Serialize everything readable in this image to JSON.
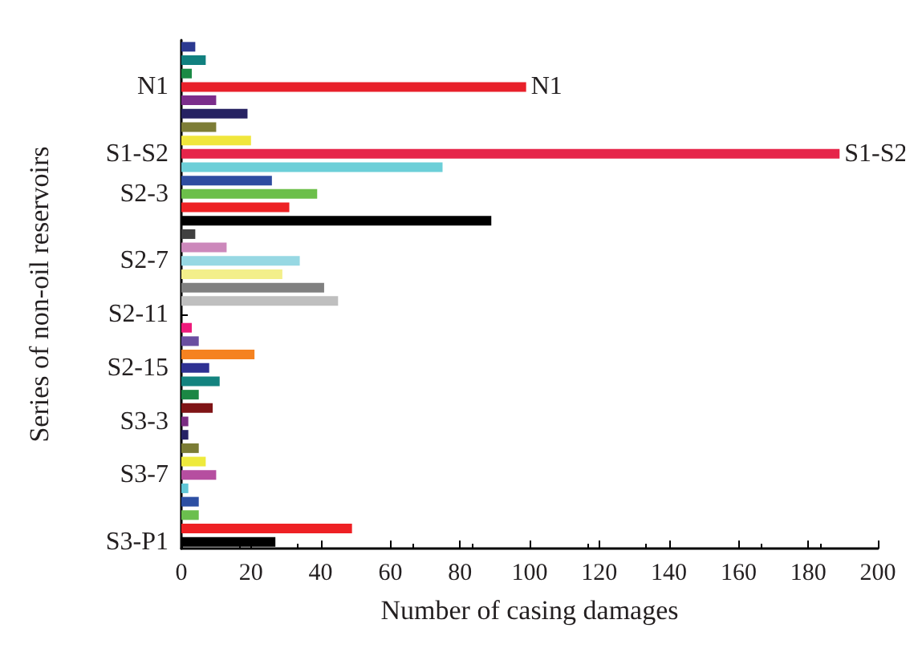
{
  "chart_data": {
    "type": "bar",
    "orientation": "horizontal",
    "xlabel": "Number of casing damages",
    "ylabel": "Series of non-oil reservoirs",
    "categories": [
      null,
      null,
      null,
      "N1",
      null,
      null,
      null,
      null,
      "S1-S2",
      null,
      null,
      "S2-3",
      null,
      null,
      null,
      null,
      "S2-7",
      null,
      null,
      null,
      "S2-11",
      null,
      null,
      null,
      "S2-15",
      null,
      null,
      null,
      "S3-3",
      null,
      null,
      null,
      "S3-7",
      null,
      null,
      null,
      null,
      "S3-P1"
    ],
    "values": [
      4,
      7,
      3,
      99,
      10,
      19,
      10,
      20,
      189,
      75,
      26,
      39,
      31,
      89,
      4,
      13,
      34,
      29,
      41,
      45,
      null,
      3,
      5,
      21,
      8,
      11,
      5,
      9,
      2,
      2,
      5,
      7,
      10,
      2,
      5,
      5,
      49,
      27
    ],
    "colors": [
      "#2b3990",
      "#11807f",
      "#1a8a45",
      "#e8202a",
      "#7b2d8b",
      "#262262",
      "#7d7d36",
      "#f0e63c",
      "#e6254a",
      "#6ccfd8",
      "#2e4ca0",
      "#6cbf4a",
      "#ed2124",
      "#000000",
      "#404040",
      "#cc88bb",
      "#97d8e3",
      "#f3ef8a",
      "#808080",
      "#bfbfbf",
      null,
      "#ed1a7b",
      "#6a4ea0",
      "#f58220",
      "#2e3192",
      "#13837f",
      "#1b8744",
      "#7f1416",
      "#7a2c82",
      "#262264",
      "#7b7c35",
      "#eeea3c",
      "#b64ea0",
      "#60c6d6",
      "#2d4fa3",
      "#6bbf4e",
      "#ee2024",
      "#000000"
    ],
    "xlim": [
      0,
      200
    ],
    "xticks": [
      0,
      20,
      40,
      60,
      80,
      100,
      120,
      140,
      160,
      180,
      200
    ],
    "annotations": [
      {
        "text": "N1",
        "x": 99,
        "y": "N1"
      },
      {
        "text": "S1-S2",
        "x": 189,
        "y": "S1-S2"
      }
    ]
  }
}
